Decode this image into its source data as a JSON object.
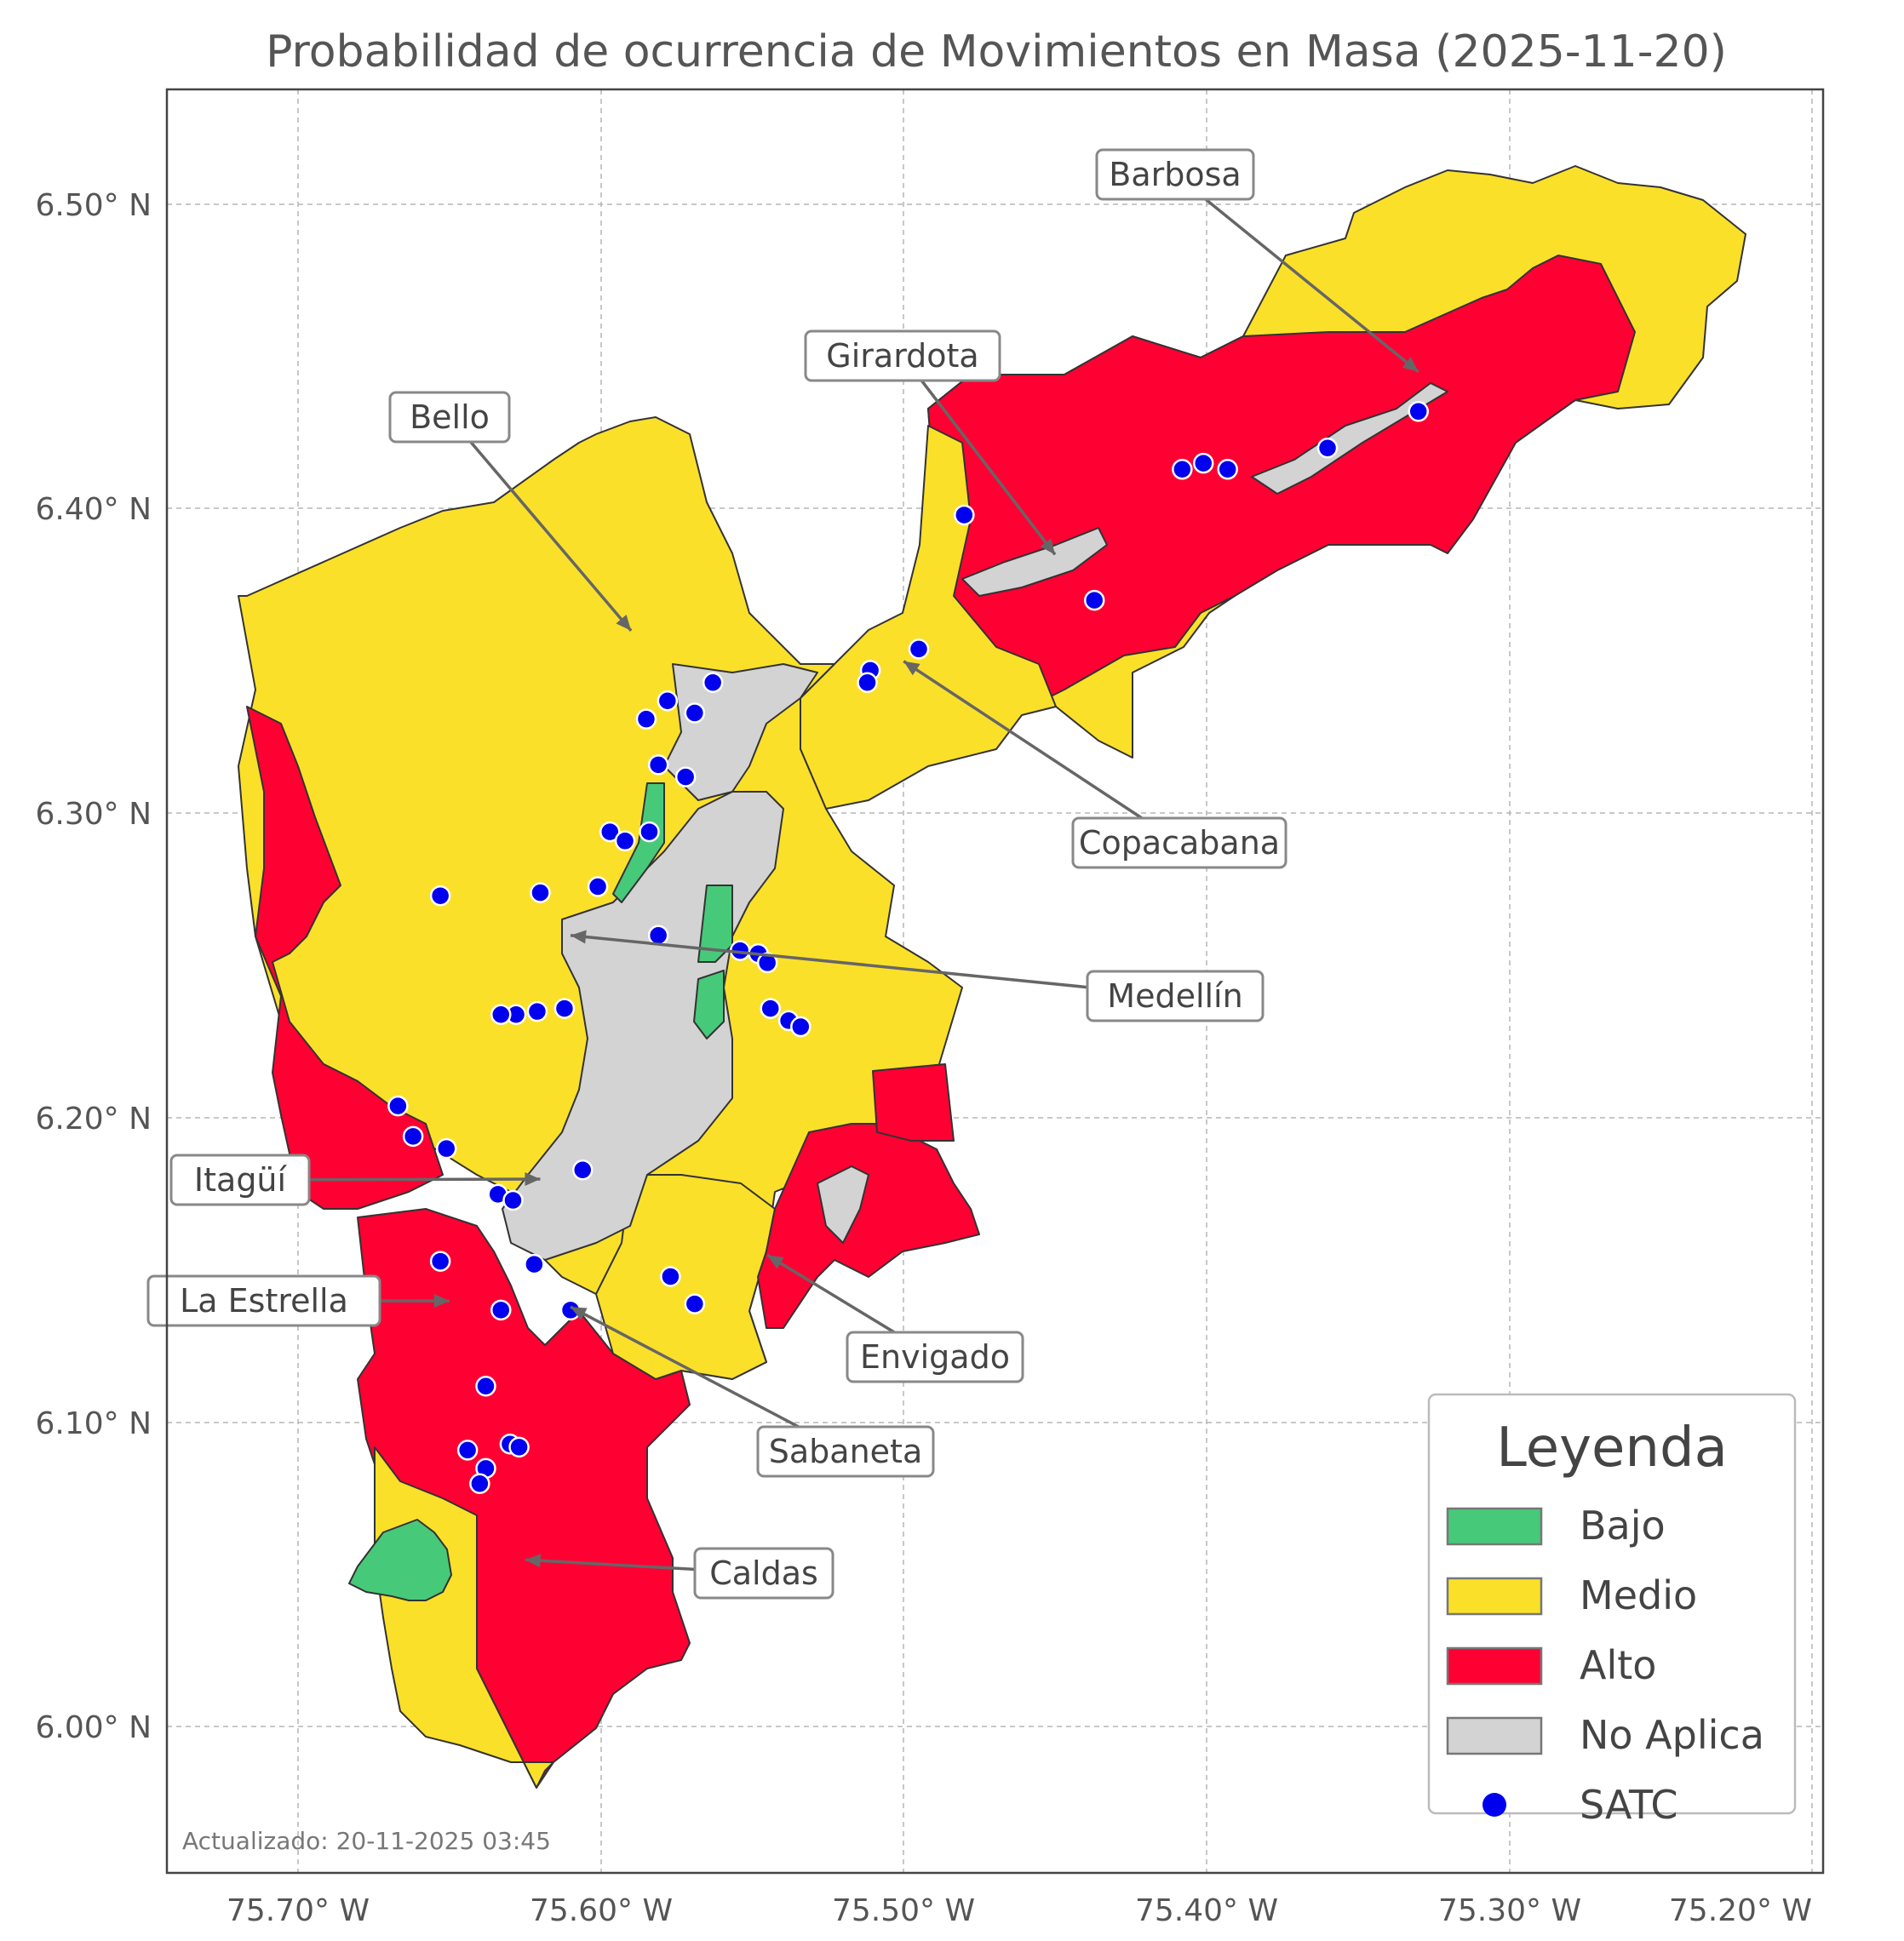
{
  "title": "Probabilidad de ocurrencia de Movimientos en Masa (2025-11-20)",
  "updated": "Actualizado: 20-11-2025 03:45",
  "axes": {
    "x_ticks": [
      "75.70° W",
      "75.60° W",
      "75.50° W",
      "75.40° W",
      "75.30° W",
      "75.20° W"
    ],
    "y_ticks": [
      "6.50° N",
      "6.40° N",
      "6.30° N",
      "6.20° N",
      "6.10° N",
      "6.00° N"
    ],
    "lon_range": [
      -75.744,
      -75.196
    ],
    "lat_range": [
      5.953,
      6.537
    ],
    "grid": true
  },
  "colors": {
    "bajo": "#47c97a",
    "medio": "#fbe02a",
    "alto": "#ff0033",
    "no_aplica": "#d3d3d3",
    "satc": "#0000ee"
  },
  "callouts": [
    {
      "label": "Barbosa",
      "lon": -75.33,
      "lat": 6.445
    },
    {
      "label": "Girardota",
      "lon": -75.45,
      "lat": 6.385
    },
    {
      "label": "Bello",
      "lon": -75.59,
      "lat": 6.36
    },
    {
      "label": "Copacabana",
      "lon": -75.5,
      "lat": 6.35
    },
    {
      "label": "Medellín",
      "lon": -75.61,
      "lat": 6.26
    },
    {
      "label": "Itagüí",
      "lon": -75.62,
      "lat": 6.18
    },
    {
      "label": "La Estrella",
      "lon": -75.65,
      "lat": 6.14
    },
    {
      "label": "Envigado",
      "lon": -75.545,
      "lat": 6.155
    },
    {
      "label": "Sabaneta",
      "lon": -75.61,
      "lat": 6.138
    },
    {
      "label": "Caldas",
      "lon": -75.625,
      "lat": 6.055
    }
  ],
  "legend": {
    "title": "Leyenda",
    "items": [
      {
        "label": "Bajo",
        "kind": "patch",
        "color": "#47c97a"
      },
      {
        "label": "Medio",
        "kind": "patch",
        "color": "#fbe02a"
      },
      {
        "label": "Alto",
        "kind": "patch",
        "color": "#ff0033"
      },
      {
        "label": "No Aplica",
        "kind": "patch",
        "color": "#d3d3d3"
      },
      {
        "label": "SATC",
        "kind": "dot",
        "color": "#0000ee"
      }
    ]
  },
  "satc_stations": [
    [
      -75.33,
      6.432
    ],
    [
      -75.36,
      6.42
    ],
    [
      -75.393,
      6.413
    ],
    [
      -75.401,
      6.415
    ],
    [
      -75.408,
      6.413
    ],
    [
      -75.48,
      6.398
    ],
    [
      -75.437,
      6.37
    ],
    [
      -75.495,
      6.354
    ],
    [
      -75.511,
      6.347
    ],
    [
      -75.512,
      6.343
    ],
    [
      -75.563,
      6.343
    ],
    [
      -75.569,
      6.333
    ],
    [
      -75.578,
      6.337
    ],
    [
      -75.585,
      6.331
    ],
    [
      -75.581,
      6.316
    ],
    [
      -75.572,
      6.312
    ],
    [
      -75.597,
      6.294
    ],
    [
      -75.592,
      6.291
    ],
    [
      -75.584,
      6.294
    ],
    [
      -75.601,
      6.276
    ],
    [
      -75.62,
      6.274
    ],
    [
      -75.653,
      6.273
    ],
    [
      -75.581,
      6.26
    ],
    [
      -75.554,
      6.255
    ],
    [
      -75.548,
      6.254
    ],
    [
      -75.545,
      6.251
    ],
    [
      -75.544,
      6.236
    ],
    [
      -75.538,
      6.232
    ],
    [
      -75.534,
      6.23
    ],
    [
      -75.612,
      6.236
    ],
    [
      -75.621,
      6.235
    ],
    [
      -75.628,
      6.234
    ],
    [
      -75.633,
      6.234
    ],
    [
      -75.606,
      6.183
    ],
    [
      -75.667,
      6.204
    ],
    [
      -75.662,
      6.194
    ],
    [
      -75.651,
      6.19
    ],
    [
      -75.634,
      6.175
    ],
    [
      -75.629,
      6.173
    ],
    [
      -75.653,
      6.153
    ],
    [
      -75.622,
      6.152
    ],
    [
      -75.577,
      6.148
    ],
    [
      -75.569,
      6.139
    ],
    [
      -75.61,
      6.137
    ],
    [
      -75.633,
      6.137
    ],
    [
      -75.638,
      6.112
    ],
    [
      -75.644,
      6.091
    ],
    [
      -75.63,
      6.093
    ],
    [
      -75.627,
      6.092
    ],
    [
      -75.638,
      6.085
    ],
    [
      -75.64,
      6.08
    ]
  ]
}
